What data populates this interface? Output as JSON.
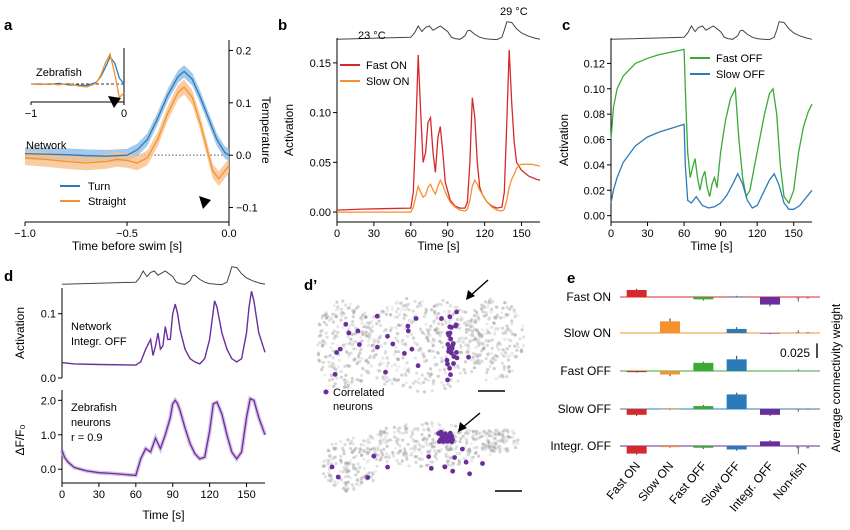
{
  "colors": {
    "blue": "#2b7bba",
    "orange": "#f5912e",
    "red": "#d6292e",
    "green": "#3aaa35",
    "purple": "#6a2d9c",
    "gray": "#888888",
    "black": "#000000",
    "blue_band": "#8dbde6",
    "orange_band": "#f7c08a",
    "purple_band": "#c4a9dd"
  },
  "chart_data": [
    {
      "panel": "a",
      "type": "line",
      "xlabel": "Time before swim [s]",
      "ylabel": "Temperature",
      "xlim": [
        -1.0,
        0.0
      ],
      "ylim": [
        -0.12,
        0.22
      ],
      "xticks": [
        -1.0,
        -0.5,
        0.0
      ],
      "xtick_labels": [
        "−1.0",
        "−0.5",
        "0.0"
      ],
      "yticks": [
        -0.1,
        0.0,
        0.1,
        0.2
      ],
      "ytick_labels": [
        "−0.1",
        "0.0",
        "0.1",
        "0.2"
      ],
      "network_label": "Network",
      "legend": [
        "Turn",
        "Straight"
      ],
      "series": [
        {
          "name": "Turn",
          "color": "blue",
          "x": [
            -1.0,
            -0.9,
            -0.8,
            -0.7,
            -0.6,
            -0.5,
            -0.45,
            -0.4,
            -0.35,
            -0.3,
            -0.25,
            -0.22,
            -0.18,
            -0.14,
            -0.1,
            -0.06,
            -0.02,
            0.0
          ],
          "y": [
            0.003,
            0.002,
            0.001,
            -0.001,
            -0.002,
            0.0,
            0.01,
            0.03,
            0.07,
            0.115,
            0.15,
            0.16,
            0.145,
            0.11,
            0.07,
            0.03,
            0.005,
            0.0
          ],
          "err": 0.012
        },
        {
          "name": "Straight",
          "color": "orange",
          "x": [
            -1.0,
            -0.9,
            -0.8,
            -0.7,
            -0.6,
            -0.55,
            -0.5,
            -0.45,
            -0.4,
            -0.35,
            -0.3,
            -0.25,
            -0.22,
            -0.18,
            -0.14,
            -0.1,
            -0.08,
            -0.05,
            -0.02,
            0.0
          ],
          "y": [
            -0.005,
            -0.008,
            -0.012,
            -0.015,
            -0.012,
            -0.008,
            -0.01,
            -0.015,
            -0.005,
            0.03,
            0.08,
            0.12,
            0.13,
            0.11,
            0.06,
            0.0,
            -0.03,
            -0.045,
            -0.03,
            -0.02
          ],
          "err": 0.014
        }
      ],
      "inset": {
        "title": "Zebrafish",
        "xlim": [
          -1.0,
          0.0
        ],
        "xticks": [
          -1.0,
          0.0
        ],
        "xtick_labels": [
          "−1",
          "0"
        ],
        "series": [
          {
            "name": "Turn",
            "color": "blue",
            "x": [
              -1.0,
              -0.9,
              -0.8,
              -0.7,
              -0.6,
              -0.5,
              -0.4,
              -0.3,
              -0.25,
              -0.2,
              -0.15,
              -0.1,
              -0.05,
              0.0
            ],
            "y": [
              0.0,
              0.0,
              -0.01,
              0.02,
              -0.03,
              -0.04,
              -0.05,
              0.05,
              0.25,
              0.55,
              0.9,
              0.7,
              0.2,
              0.0
            ]
          },
          {
            "name": "Straight",
            "color": "orange",
            "x": [
              -1.0,
              -0.9,
              -0.8,
              -0.7,
              -0.6,
              -0.5,
              -0.4,
              -0.3,
              -0.25,
              -0.2,
              -0.15,
              -0.1,
              -0.05,
              0.0
            ],
            "y": [
              0.0,
              -0.02,
              0.01,
              -0.03,
              0.02,
              -0.06,
              -0.1,
              0.02,
              0.3,
              0.7,
              1.0,
              0.35,
              -0.45,
              -0.3
            ]
          }
        ]
      }
    },
    {
      "panel": "b",
      "type": "line",
      "xlabel": "Time [s]",
      "ylabel": "Activation",
      "xlim": [
        0,
        165
      ],
      "ylim": [
        -0.01,
        0.175
      ],
      "xticks": [
        0,
        30,
        60,
        90,
        120,
        150
      ],
      "yticks": [
        0.0,
        0.05,
        0.1,
        0.15
      ],
      "ytick_labels": [
        "0.00",
        "0.05",
        "0.10",
        "0.15"
      ],
      "temp_labels": [
        "23 °C",
        "29 °C"
      ],
      "legend": [
        "Fast ON",
        "Slow ON"
      ],
      "series": [
        {
          "name": "Fast ON",
          "color": "red",
          "x": [
            0,
            20,
            60,
            62,
            64,
            66,
            68,
            70,
            72,
            74,
            76,
            78,
            80,
            82,
            84,
            86,
            88,
            92,
            96,
            100,
            104,
            106,
            108,
            110,
            112,
            114,
            116,
            118,
            122,
            126,
            130,
            134,
            136,
            138,
            140,
            142,
            144,
            146,
            150,
            156,
            162,
            165
          ],
          "y": [
            0.002,
            0.003,
            0.004,
            0.02,
            0.08,
            0.158,
            0.1,
            0.05,
            0.06,
            0.09,
            0.095,
            0.06,
            0.04,
            0.075,
            0.086,
            0.06,
            0.03,
            0.012,
            0.006,
            0.004,
            0.004,
            0.01,
            0.05,
            0.115,
            0.095,
            0.05,
            0.025,
            0.018,
            0.01,
            0.006,
            0.004,
            0.005,
            0.02,
            0.09,
            0.163,
            0.11,
            0.07,
            0.05,
            0.042,
            0.036,
            0.033,
            0.032
          ]
        },
        {
          "name": "Slow ON",
          "color": "orange",
          "x": [
            0,
            60,
            62,
            64,
            66,
            68,
            70,
            72,
            74,
            76,
            78,
            80,
            82,
            84,
            86,
            88,
            92,
            96,
            100,
            104,
            106,
            108,
            110,
            112,
            114,
            116,
            118,
            122,
            126,
            130,
            134,
            136,
            138,
            140,
            142,
            144,
            146,
            148,
            150,
            154,
            158,
            162,
            165
          ],
          "y": [
            0.0,
            0.0,
            0.005,
            0.015,
            0.026,
            0.02,
            0.015,
            0.017,
            0.025,
            0.028,
            0.022,
            0.018,
            0.026,
            0.032,
            0.027,
            0.02,
            0.01,
            0.005,
            0.002,
            0.001,
            0.003,
            0.012,
            0.026,
            0.032,
            0.028,
            0.022,
            0.018,
            0.01,
            0.005,
            0.002,
            0.001,
            0.003,
            0.012,
            0.025,
            0.033,
            0.038,
            0.044,
            0.047,
            0.048,
            0.048,
            0.048,
            0.047,
            0.046
          ]
        }
      ]
    },
    {
      "panel": "c",
      "type": "line",
      "xlabel": "Time [s]",
      "ylabel": "Activation",
      "xlim": [
        0,
        165
      ],
      "ylim": [
        -0.005,
        0.14
      ],
      "xticks": [
        0,
        30,
        60,
        90,
        120,
        150
      ],
      "yticks": [
        0.0,
        0.02,
        0.04,
        0.06,
        0.08,
        0.1,
        0.12
      ],
      "ytick_labels": [
        "0.00",
        "0.02",
        "0.04",
        "0.06",
        "0.08",
        "0.10",
        "0.12"
      ],
      "legend": [
        "Fast OFF",
        "Slow OFF"
      ],
      "series": [
        {
          "name": "Fast OFF",
          "color": "green",
          "x": [
            0,
            2,
            5,
            10,
            20,
            30,
            40,
            50,
            60,
            61,
            63,
            65,
            67,
            69,
            71,
            73,
            75,
            77,
            79,
            81,
            83,
            85,
            87,
            90,
            94,
            98,
            102,
            105,
            108,
            111,
            114,
            118,
            122,
            126,
            130,
            133,
            136,
            139,
            142,
            146,
            150,
            154,
            158,
            162,
            165
          ],
          "y": [
            0.06,
            0.085,
            0.1,
            0.11,
            0.12,
            0.124,
            0.127,
            0.129,
            0.131,
            0.1,
            0.05,
            0.03,
            0.038,
            0.045,
            0.03,
            0.02,
            0.03,
            0.035,
            0.022,
            0.015,
            0.025,
            0.03,
            0.022,
            0.05,
            0.075,
            0.092,
            0.1,
            0.06,
            0.03,
            0.015,
            0.02,
            0.04,
            0.06,
            0.08,
            0.096,
            0.1,
            0.08,
            0.04,
            0.015,
            0.01,
            0.02,
            0.05,
            0.07,
            0.082,
            0.088
          ]
        },
        {
          "name": "Slow OFF",
          "color": "blue",
          "x": [
            0,
            2,
            5,
            10,
            20,
            30,
            40,
            50,
            60,
            61,
            63,
            66,
            70,
            75,
            80,
            85,
            90,
            95,
            100,
            104,
            108,
            112,
            116,
            120,
            125,
            130,
            134,
            138,
            142,
            146,
            150,
            155,
            160,
            165
          ],
          "y": [
            0.01,
            0.02,
            0.03,
            0.042,
            0.055,
            0.062,
            0.066,
            0.069,
            0.072,
            0.04,
            0.012,
            0.01,
            0.015,
            0.008,
            0.006,
            0.007,
            0.01,
            0.016,
            0.025,
            0.033,
            0.025,
            0.012,
            0.006,
            0.008,
            0.018,
            0.028,
            0.033,
            0.024,
            0.01,
            0.005,
            0.005,
            0.008,
            0.014,
            0.02
          ]
        }
      ]
    },
    {
      "panel": "d",
      "type": "line",
      "xlabel": "Time [s]",
      "xlim": [
        0,
        165
      ],
      "xticks": [
        0,
        30,
        60,
        90,
        120,
        150
      ],
      "top": {
        "ylabel": "Activation",
        "ylim": [
          0.0,
          0.14
        ],
        "yticks": [
          0.0,
          0.1
        ],
        "ytick_labels": [
          "0.0",
          "0.1"
        ],
        "annotation": [
          "Network",
          "Integr. OFF"
        ],
        "series": [
          {
            "name": "",
            "color": "purple",
            "x": [
              0,
              10,
              30,
              60,
              64,
              68,
              72,
              74,
              76,
              78,
              80,
              82,
              84,
              86,
              88,
              90,
              92,
              94,
              96,
              100,
              104,
              108,
              112,
              116,
              120,
              122,
              124,
              126,
              130,
              134,
              138,
              142,
              146,
              150,
              152,
              154,
              156,
              160,
              165
            ],
            "y": [
              0.024,
              0.022,
              0.021,
              0.02,
              0.025,
              0.045,
              0.06,
              0.035,
              0.05,
              0.07,
              0.045,
              0.05,
              0.08,
              0.06,
              0.06,
              0.1,
              0.115,
              0.1,
              0.075,
              0.045,
              0.03,
              0.025,
              0.022,
              0.03,
              0.06,
              0.09,
              0.12,
              0.11,
              0.07,
              0.045,
              0.03,
              0.025,
              0.03,
              0.07,
              0.11,
              0.135,
              0.12,
              0.07,
              0.04
            ]
          }
        ]
      },
      "bottom": {
        "ylabel": "ΔF/F₀",
        "ylim": [
          -0.4,
          2.3
        ],
        "yticks": [
          0.0,
          1.0,
          2.0
        ],
        "ytick_labels": [
          "0.0",
          "1.0",
          "2.0"
        ],
        "annotation": [
          "Zebrafish",
          "neurons",
          "r = 0.9"
        ],
        "series": [
          {
            "name": "",
            "color": "purple",
            "x": [
              0,
              2,
              5,
              10,
              20,
              30,
              40,
              50,
              60,
              64,
              68,
              72,
              76,
              80,
              84,
              88,
              90,
              92,
              94,
              96,
              100,
              104,
              108,
              112,
              116,
              120,
              123,
              126,
              130,
              134,
              138,
              142,
              146,
              150,
              153,
              156,
              160,
              165
            ],
            "y": [
              0.55,
              0.35,
              0.2,
              0.05,
              -0.05,
              -0.1,
              -0.12,
              -0.15,
              -0.18,
              0.3,
              0.6,
              0.5,
              0.9,
              0.6,
              1.0,
              1.5,
              1.9,
              2.0,
              1.9,
              1.7,
              1.2,
              0.75,
              0.45,
              0.3,
              0.35,
              1.1,
              1.9,
              1.95,
              1.6,
              1.0,
              0.5,
              0.3,
              0.5,
              1.5,
              2.05,
              2.0,
              1.5,
              1.0
            ]
          }
        ]
      }
    },
    {
      "panel": "e",
      "type": "bar",
      "ylabel": "Average connectivity weight",
      "scale_bar_label": "0.025",
      "scale_bar_value": 0.025,
      "categories": [
        "Fast ON",
        "Slow ON",
        "Fast OFF",
        "Slow OFF",
        "Integr. OFF",
        "Non-fish"
      ],
      "category_colors": [
        "red",
        "orange",
        "green",
        "blue",
        "purple",
        "gray"
      ],
      "rows": [
        {
          "name": "Fast ON",
          "color": "red",
          "values": [
            0.012,
            0.0,
            -0.004,
            0.001,
            -0.013,
            -0.005
          ],
          "errs": [
            0.002,
            0.0,
            0.002,
            0.001,
            0.003,
            0.003
          ]
        },
        {
          "name": "Slow ON",
          "color": "orange",
          "values": [
            0.0,
            0.02,
            0.0,
            0.007,
            -0.001,
            0.003
          ],
          "errs": [
            0.0,
            0.005,
            0.0,
            0.003,
            0.001,
            0.002
          ]
        },
        {
          "name": "Fast OFF",
          "color": "green",
          "values": [
            -0.002,
            -0.006,
            0.014,
            0.02,
            0.0,
            0.001
          ],
          "errs": [
            0.001,
            0.003,
            0.002,
            0.006,
            0.0,
            0.002
          ]
        },
        {
          "name": "Slow OFF",
          "color": "blue",
          "values": [
            -0.01,
            -0.001,
            0.005,
            0.025,
            -0.01,
            -0.003
          ],
          "errs": [
            0.002,
            0.001,
            0.002,
            0.003,
            0.002,
            0.002
          ]
        },
        {
          "name": "Integr. OFF",
          "color": "purple",
          "values": [
            -0.013,
            -0.002,
            -0.003,
            -0.006,
            0.008,
            -0.008
          ],
          "errs": [
            0.002,
            0.001,
            0.002,
            0.002,
            0.002,
            0.006
          ]
        }
      ]
    },
    {
      "panel": "d′",
      "type": "scatter",
      "legend": "Correlated neurons"
    }
  ],
  "temperature_trace": {
    "x": [
      0,
      60,
      63,
      66,
      69,
      72,
      75,
      78,
      81,
      84,
      87,
      90,
      93,
      96,
      100,
      104,
      106,
      108,
      112,
      116,
      120,
      125,
      130,
      134,
      136,
      138,
      142,
      146,
      150,
      155,
      160,
      165
    ],
    "y": [
      0.05,
      0.2,
      0.5,
      1.0,
      0.6,
      0.9,
      1.0,
      0.7,
      0.85,
      1.0,
      0.8,
      0.6,
      0.2,
      0.1,
      0.05,
      0.3,
      0.65,
      0.7,
      0.4,
      0.2,
      0.1,
      0.05,
      0.03,
      0.2,
      0.7,
      1.3,
      1.25,
      0.8,
      0.5,
      0.3,
      0.15,
      0.05
    ]
  },
  "panel_labels": [
    "a",
    "b",
    "c",
    "d",
    "d’",
    "e"
  ]
}
